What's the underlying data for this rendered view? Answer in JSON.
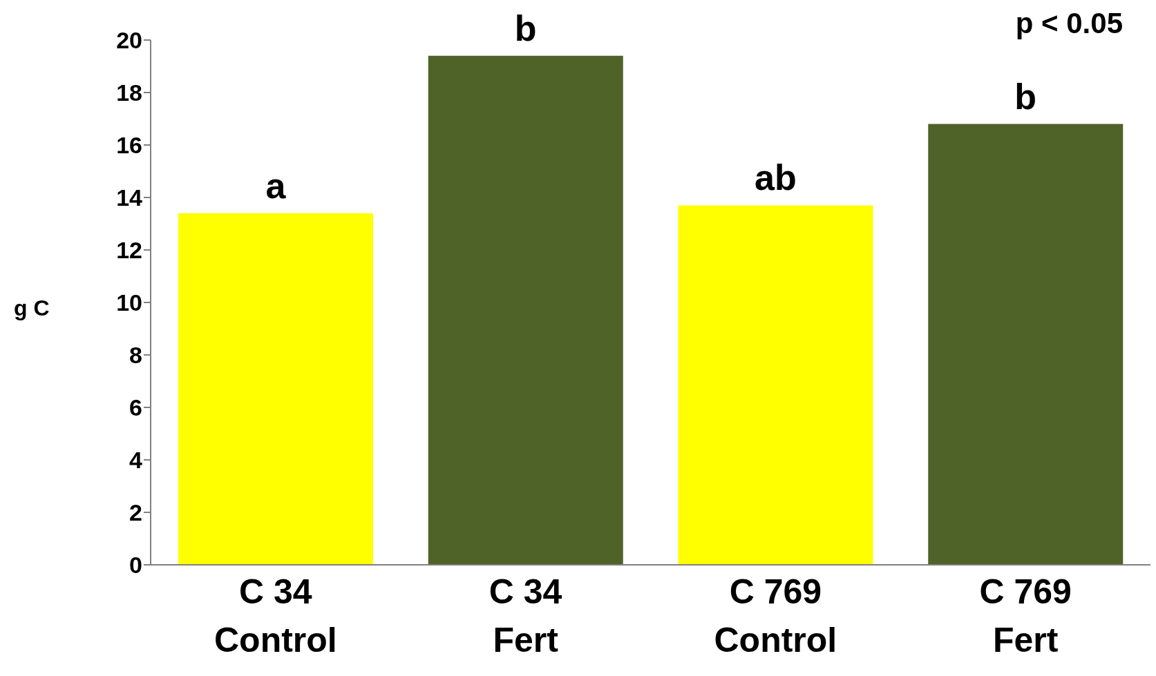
{
  "chart_data": {
    "type": "bar",
    "ylabel": "g C",
    "categories": [
      "C 34\nControl",
      "C 34\nFert",
      "C 769\nControl",
      "C 769\nFert"
    ],
    "values": [
      13.4,
      19.4,
      13.7,
      16.8
    ],
    "colors": [
      "#ffff00",
      "#4f6228",
      "#ffff00",
      "#4f6228"
    ],
    "ylim": [
      0,
      20
    ],
    "yticks": [
      0,
      2,
      4,
      6,
      8,
      10,
      12,
      14,
      16,
      18,
      20
    ],
    "grid": false,
    "legend": false,
    "annotations": [
      {
        "text": "a",
        "x": "C 34\nControl",
        "y": 13.4
      },
      {
        "text": "b",
        "x": "C 34\nFert",
        "y": 19.4
      },
      {
        "text": "ab",
        "x": "C 769\nControl",
        "y": 13.7
      },
      {
        "text": "b",
        "x": "C 769\nFert",
        "y": 16.8
      },
      "p < 0.05"
    ]
  }
}
